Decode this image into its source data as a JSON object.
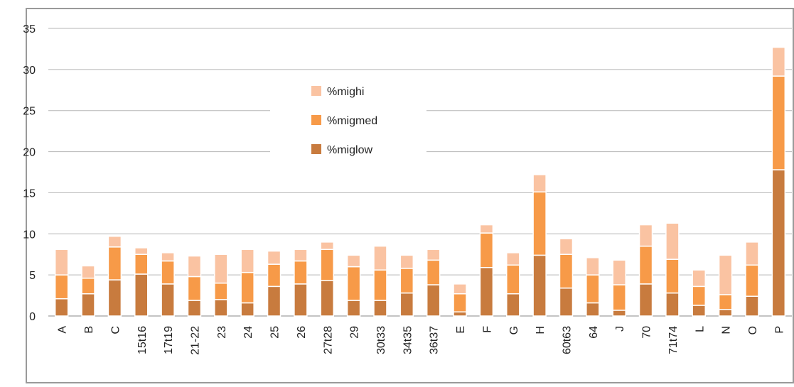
{
  "chart_data": {
    "type": "bar",
    "stacked": true,
    "categories": [
      "A",
      "B",
      "C",
      "15t16",
      "17t19",
      "21-22",
      "23",
      "24",
      "25",
      "26",
      "27t28",
      "29",
      "30t33",
      "34t35",
      "36t37",
      "E",
      "F",
      "G",
      "H",
      "60t63",
      "64",
      "J",
      "70",
      "71t74",
      "L",
      "N",
      "O",
      "P"
    ],
    "series": [
      {
        "name": "%miglow",
        "color": "#c87b3e",
        "values": [
          2.1,
          2.7,
          4.4,
          5.1,
          3.9,
          1.9,
          2.0,
          1.6,
          3.6,
          3.9,
          4.3,
          1.9,
          1.9,
          2.8,
          3.8,
          0.5,
          5.9,
          2.7,
          7.4,
          3.4,
          1.6,
          0.7,
          3.9,
          2.8,
          1.3,
          0.8,
          2.4,
          17.8
        ]
      },
      {
        "name": "%migmed",
        "color": "#f79a48",
        "values": [
          2.9,
          1.9,
          4.0,
          2.4,
          2.8,
          2.9,
          2.0,
          3.7,
          2.7,
          2.8,
          3.8,
          4.1,
          3.7,
          3.0,
          3.0,
          2.2,
          4.2,
          3.5,
          7.7,
          4.1,
          3.4,
          3.1,
          4.6,
          4.1,
          2.3,
          1.8,
          3.8,
          11.4
        ]
      },
      {
        "name": "%mighi",
        "color": "#fac3a2",
        "values": [
          3.1,
          1.5,
          1.3,
          0.8,
          1.0,
          2.5,
          3.5,
          2.8,
          1.6,
          1.4,
          0.9,
          1.4,
          2.9,
          1.6,
          1.3,
          1.2,
          1.0,
          1.5,
          2.1,
          1.9,
          2.1,
          3.0,
          2.6,
          4.4,
          2.0,
          4.8,
          2.8,
          3.5
        ]
      }
    ],
    "ylim": [
      0,
      35
    ],
    "yticks": [
      0,
      5,
      10,
      15,
      20,
      25,
      30,
      35
    ],
    "grid": true
  }
}
